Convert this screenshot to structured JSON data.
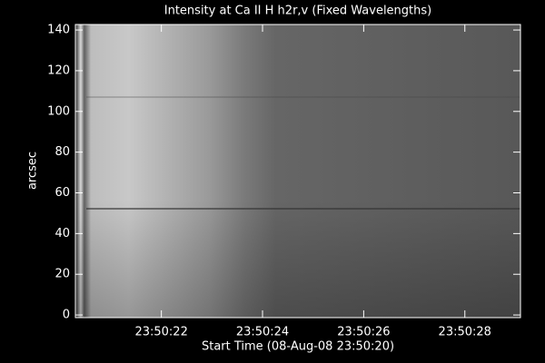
{
  "chart_data": {
    "type": "image",
    "title": "Intensity at Ca II H h2r,v (Fixed Wavelengths)",
    "x_label": "Start Time (08-Aug-08 23:50:20)",
    "y_label": "arcsec",
    "xlim": [
      0.3,
      9.1
    ],
    "xticks": [
      {
        "value": 2,
        "label": "23:50:22"
      },
      {
        "value": 4,
        "label": "23:50:24"
      },
      {
        "value": 6,
        "label": "23:50:26"
      },
      {
        "value": 8,
        "label": "23:50:28"
      }
    ],
    "ylim": [
      -1.3,
      142.7
    ],
    "yticks": [
      0,
      20,
      40,
      60,
      80,
      100,
      120,
      140
    ]
  }
}
